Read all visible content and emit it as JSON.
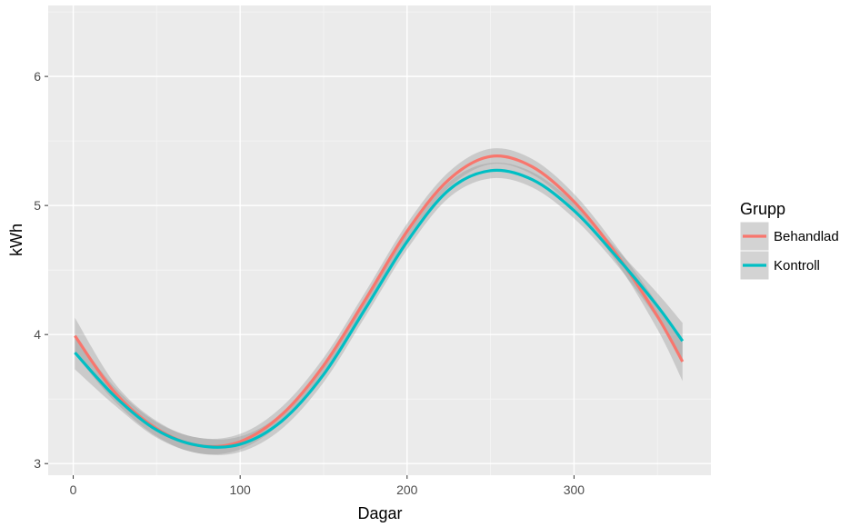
{
  "chart_data": {
    "type": "line",
    "xlabel": "Dagar",
    "ylabel": "kWh",
    "xlim": [
      -15,
      382
    ],
    "ylim": [
      2.91,
      6.55
    ],
    "x_ticks": [
      0,
      100,
      200,
      300
    ],
    "y_ticks": [
      3,
      4,
      5,
      6
    ],
    "grid": true,
    "legend": {
      "title": "Grupp",
      "placement": "right"
    },
    "x": [
      1,
      25,
      50,
      75,
      100,
      125,
      150,
      175,
      200,
      225,
      250,
      275,
      300,
      325,
      350,
      365
    ],
    "series": [
      {
        "name": "Behandlad",
        "color": "#F8766D",
        "values": [
          3.99,
          3.55,
          3.27,
          3.14,
          3.17,
          3.38,
          3.76,
          4.27,
          4.8,
          5.2,
          5.38,
          5.3,
          5.03,
          4.63,
          4.14,
          3.79
        ],
        "ci_lower": [
          3.85,
          3.48,
          3.21,
          3.08,
          3.11,
          3.32,
          3.7,
          4.21,
          4.74,
          5.14,
          5.32,
          5.24,
          4.97,
          4.57,
          4.04,
          3.64
        ],
        "ci_upper": [
          4.13,
          3.62,
          3.33,
          3.2,
          3.23,
          3.44,
          3.82,
          4.33,
          4.86,
          5.26,
          5.44,
          5.36,
          5.09,
          4.69,
          4.24,
          3.94
        ]
      },
      {
        "name": "Kontroll",
        "color": "#00BFC4",
        "values": [
          3.86,
          3.52,
          3.26,
          3.14,
          3.15,
          3.33,
          3.69,
          4.2,
          4.72,
          5.12,
          5.27,
          5.2,
          4.96,
          4.61,
          4.22,
          3.95
        ],
        "ci_lower": [
          3.73,
          3.45,
          3.2,
          3.08,
          3.09,
          3.27,
          3.63,
          4.14,
          4.66,
          5.06,
          5.21,
          5.14,
          4.9,
          4.55,
          4.12,
          3.81
        ],
        "ci_upper": [
          3.99,
          3.59,
          3.32,
          3.2,
          3.21,
          3.39,
          3.75,
          4.26,
          4.78,
          5.18,
          5.33,
          5.26,
          5.02,
          4.67,
          4.32,
          4.09
        ]
      }
    ]
  }
}
